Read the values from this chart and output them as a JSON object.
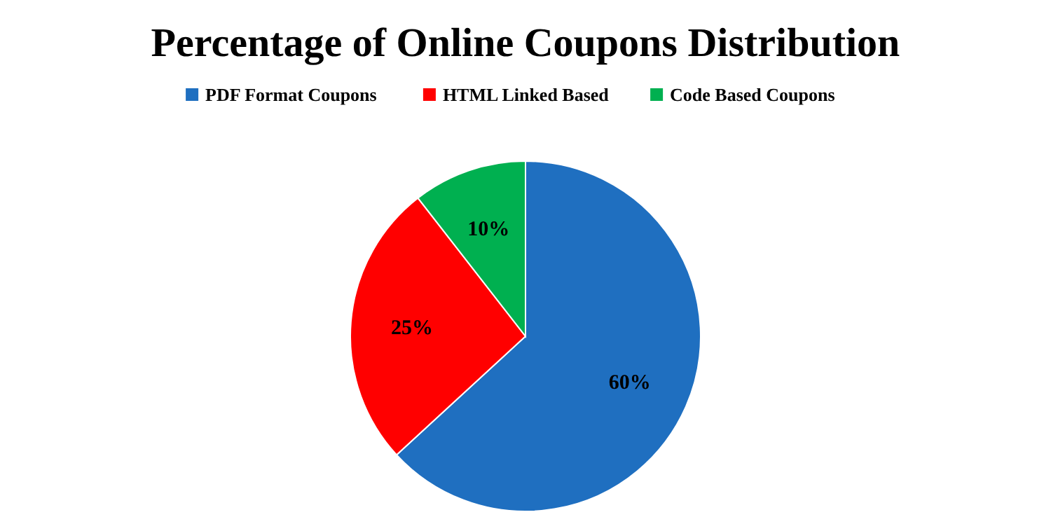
{
  "chart_data": {
    "type": "pie",
    "title": "Percentage of Online Coupons Distribution",
    "categories": [
      "PDF Format Coupons",
      "HTML Linked Based",
      "Code Based Coupons"
    ],
    "values": [
      60,
      25,
      10
    ],
    "colors": [
      "#1f6fc0",
      "#ff0000",
      "#00b050"
    ],
    "value_labels": [
      "60%",
      "25%",
      "10%"
    ],
    "legend": "top"
  }
}
